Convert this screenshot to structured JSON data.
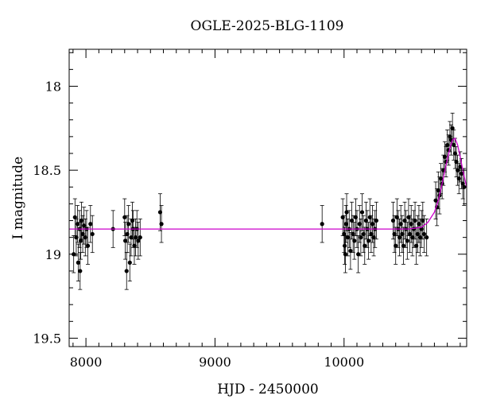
{
  "chart_data": {
    "type": "scatter",
    "title": "OGLE-2025-BLG-1109",
    "xlabel": "HJD - 2450000",
    "ylabel": "I magnitude",
    "xlim": [
      7870,
      10950
    ],
    "ylim": [
      19.55,
      17.78
    ],
    "y_inverted": true,
    "x_ticks": [
      8000,
      9000,
      10000
    ],
    "x_tick_labels": [
      "8000",
      "9000",
      "10000"
    ],
    "y_ticks": [
      18,
      18.5,
      19,
      19.5
    ],
    "y_tick_labels": [
      "18",
      "18.5",
      "19",
      "19.5"
    ],
    "grid": false,
    "legend": "none",
    "colors": {
      "data": "#000000",
      "model": "#cc00cc"
    },
    "series": [
      {
        "kind": "points",
        "x": [
          7905,
          7915,
          7925,
          7935,
          7940,
          7950,
          7955,
          7960,
          7965,
          7975,
          7985,
          7995,
          8005,
          8015,
          8035,
          8050,
          8210,
          8300,
          8305,
          8315,
          8320,
          8330,
          8340,
          8350,
          8360,
          8365,
          8375,
          8385,
          8395,
          8405,
          8420,
          8575,
          8585,
          9830,
          9990,
          10000,
          10005,
          10010,
          10015,
          10020,
          10030,
          10040,
          10050,
          10060,
          10070,
          10080,
          10090,
          10100,
          10110,
          10120,
          10130,
          10140,
          10150,
          10160,
          10170,
          10180,
          10190,
          10200,
          10210,
          10220,
          10230,
          10240,
          10250,
          10380,
          10390,
          10400,
          10410,
          10420,
          10430,
          10440,
          10450,
          10460,
          10470,
          10480,
          10490,
          10500,
          10510,
          10520,
          10530,
          10540,
          10550,
          10560,
          10570,
          10580,
          10590,
          10600,
          10610,
          10620,
          10640,
          10710,
          10720,
          10730,
          10740,
          10750,
          10760,
          10770,
          10780,
          10790,
          10800,
          10810,
          10820,
          10830,
          10840,
          10850,
          10860,
          10870,
          10880,
          10890,
          10900,
          10910,
          10920,
          10930
        ],
        "y": [
          19.0,
          18.78,
          18.9,
          18.82,
          19.05,
          18.85,
          19.1,
          18.92,
          18.8,
          18.88,
          18.83,
          18.9,
          18.85,
          18.95,
          18.82,
          18.88,
          18.85,
          18.78,
          18.92,
          19.1,
          18.88,
          18.82,
          19.05,
          18.9,
          18.8,
          18.85,
          18.95,
          18.9,
          18.85,
          18.92,
          18.9,
          18.75,
          18.82,
          18.82,
          18.78,
          18.88,
          18.95,
          19.0,
          18.82,
          18.75,
          18.9,
          18.85,
          18.98,
          18.8,
          18.88,
          18.92,
          18.78,
          18.85,
          19.0,
          18.82,
          18.9,
          18.75,
          18.88,
          18.95,
          18.8,
          18.85,
          18.92,
          18.78,
          18.88,
          18.82,
          18.9,
          18.85,
          18.8,
          18.8,
          18.88,
          18.95,
          18.78,
          18.85,
          18.9,
          18.82,
          18.88,
          18.95,
          18.8,
          18.85,
          18.92,
          18.78,
          18.88,
          18.82,
          18.9,
          18.85,
          18.8,
          18.95,
          18.88,
          18.82,
          18.9,
          18.85,
          18.8,
          18.88,
          18.9,
          18.68,
          18.72,
          18.62,
          18.65,
          18.55,
          18.58,
          18.5,
          18.42,
          18.45,
          18.35,
          18.38,
          18.3,
          18.32,
          18.25,
          18.35,
          18.4,
          18.45,
          18.5,
          18.55,
          18.48,
          18.52,
          18.58,
          18.6
        ]
      },
      {
        "kind": "model",
        "x": [
          7870,
          8500,
          9000,
          9500,
          10000,
          10300,
          10500,
          10600,
          10650,
          10700,
          10730,
          10760,
          10790,
          10820,
          10840,
          10860,
          10880,
          10900,
          10920,
          10950
        ],
        "y": [
          18.85,
          18.85,
          18.85,
          18.85,
          18.85,
          18.85,
          18.85,
          18.84,
          18.81,
          18.75,
          18.68,
          18.58,
          18.47,
          18.37,
          18.32,
          18.31,
          18.35,
          18.42,
          18.5,
          18.6
        ]
      }
    ]
  }
}
